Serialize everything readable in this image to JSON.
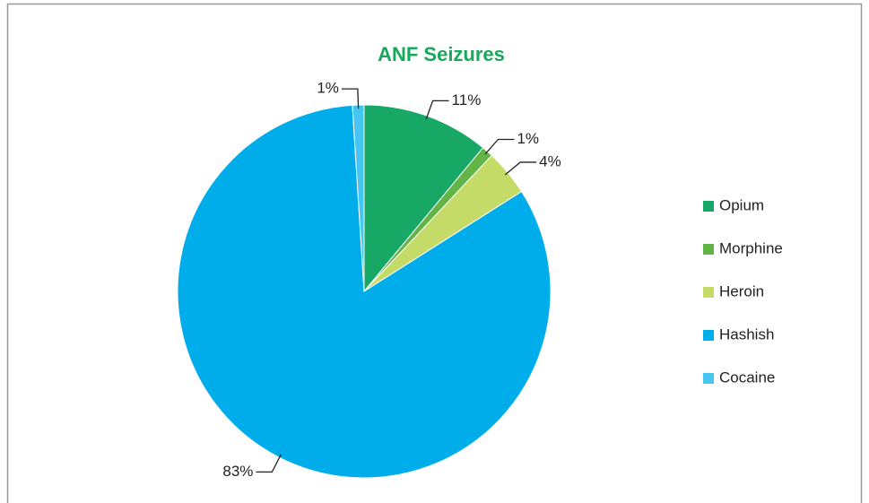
{
  "chart_data": {
    "type": "pie",
    "title": "ANF Seizures",
    "categories": [
      "Opium",
      "Morphine",
      "Heroin",
      "Hashish",
      "Cocaine"
    ],
    "values": [
      11,
      1,
      4,
      83,
      1
    ],
    "value_labels": [
      "11%",
      "1%",
      "4%",
      "83%",
      "1%"
    ],
    "colors": [
      "#17a865",
      "#62b446",
      "#c4dc67",
      "#00adeb",
      "#45c5f0"
    ],
    "legend": "right"
  }
}
